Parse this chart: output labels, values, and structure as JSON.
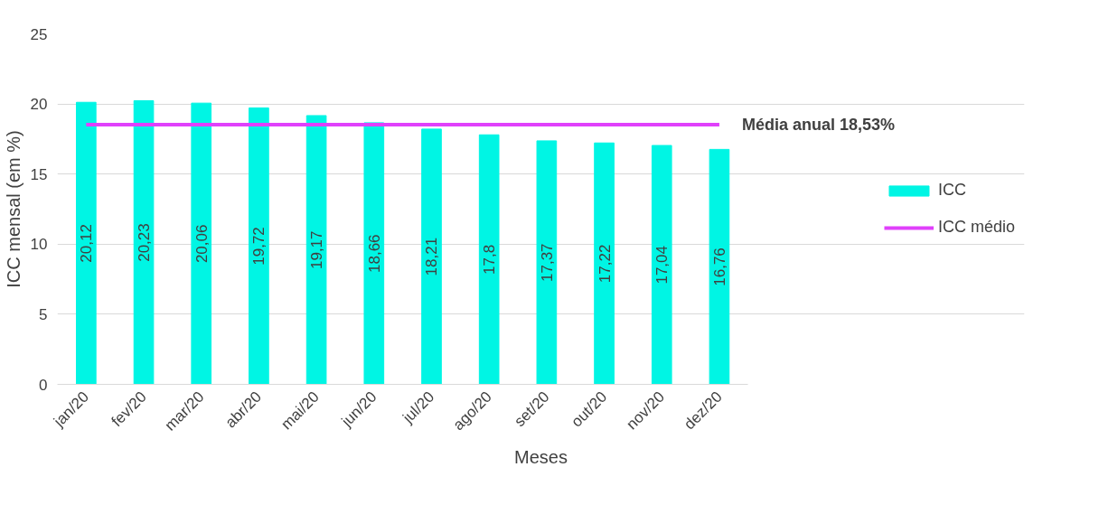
{
  "chart_data": {
    "type": "bar",
    "xlabel": "Meses",
    "ylabel": "ICC mensal (em %)",
    "categories": [
      "jan/20",
      "fev/20",
      "mar/20",
      "abr/20",
      "mai/20",
      "jun/20",
      "jul/20",
      "ago/20",
      "set/20",
      "out/20",
      "nov/20",
      "dez/20"
    ],
    "series": [
      {
        "name": "ICC",
        "color": "#00f5e4",
        "values": [
          20.12,
          20.23,
          20.06,
          19.72,
          19.17,
          18.66,
          18.21,
          17.8,
          17.37,
          17.22,
          17.04,
          16.76
        ],
        "value_labels": [
          "20,12",
          "20,23",
          "20,06",
          "19,72",
          "19,17",
          "18,66",
          "18,21",
          "17,8",
          "17,37",
          "17,22",
          "17,04",
          "16,76"
        ]
      },
      {
        "name": "ICC médio",
        "type": "line",
        "color": "#e040fb",
        "values": [
          18.53,
          18.53,
          18.53,
          18.53,
          18.53,
          18.53,
          18.53,
          18.53,
          18.53,
          18.53,
          18.53,
          18.53
        ]
      }
    ],
    "annotations": [
      {
        "text": "Média anual 18,53%",
        "x": "dez/20",
        "y": 18.53
      }
    ],
    "ylim": [
      0,
      25
    ],
    "yticks": [
      0,
      5,
      10,
      15,
      20,
      25
    ],
    "grid": "y",
    "legend": "right"
  }
}
